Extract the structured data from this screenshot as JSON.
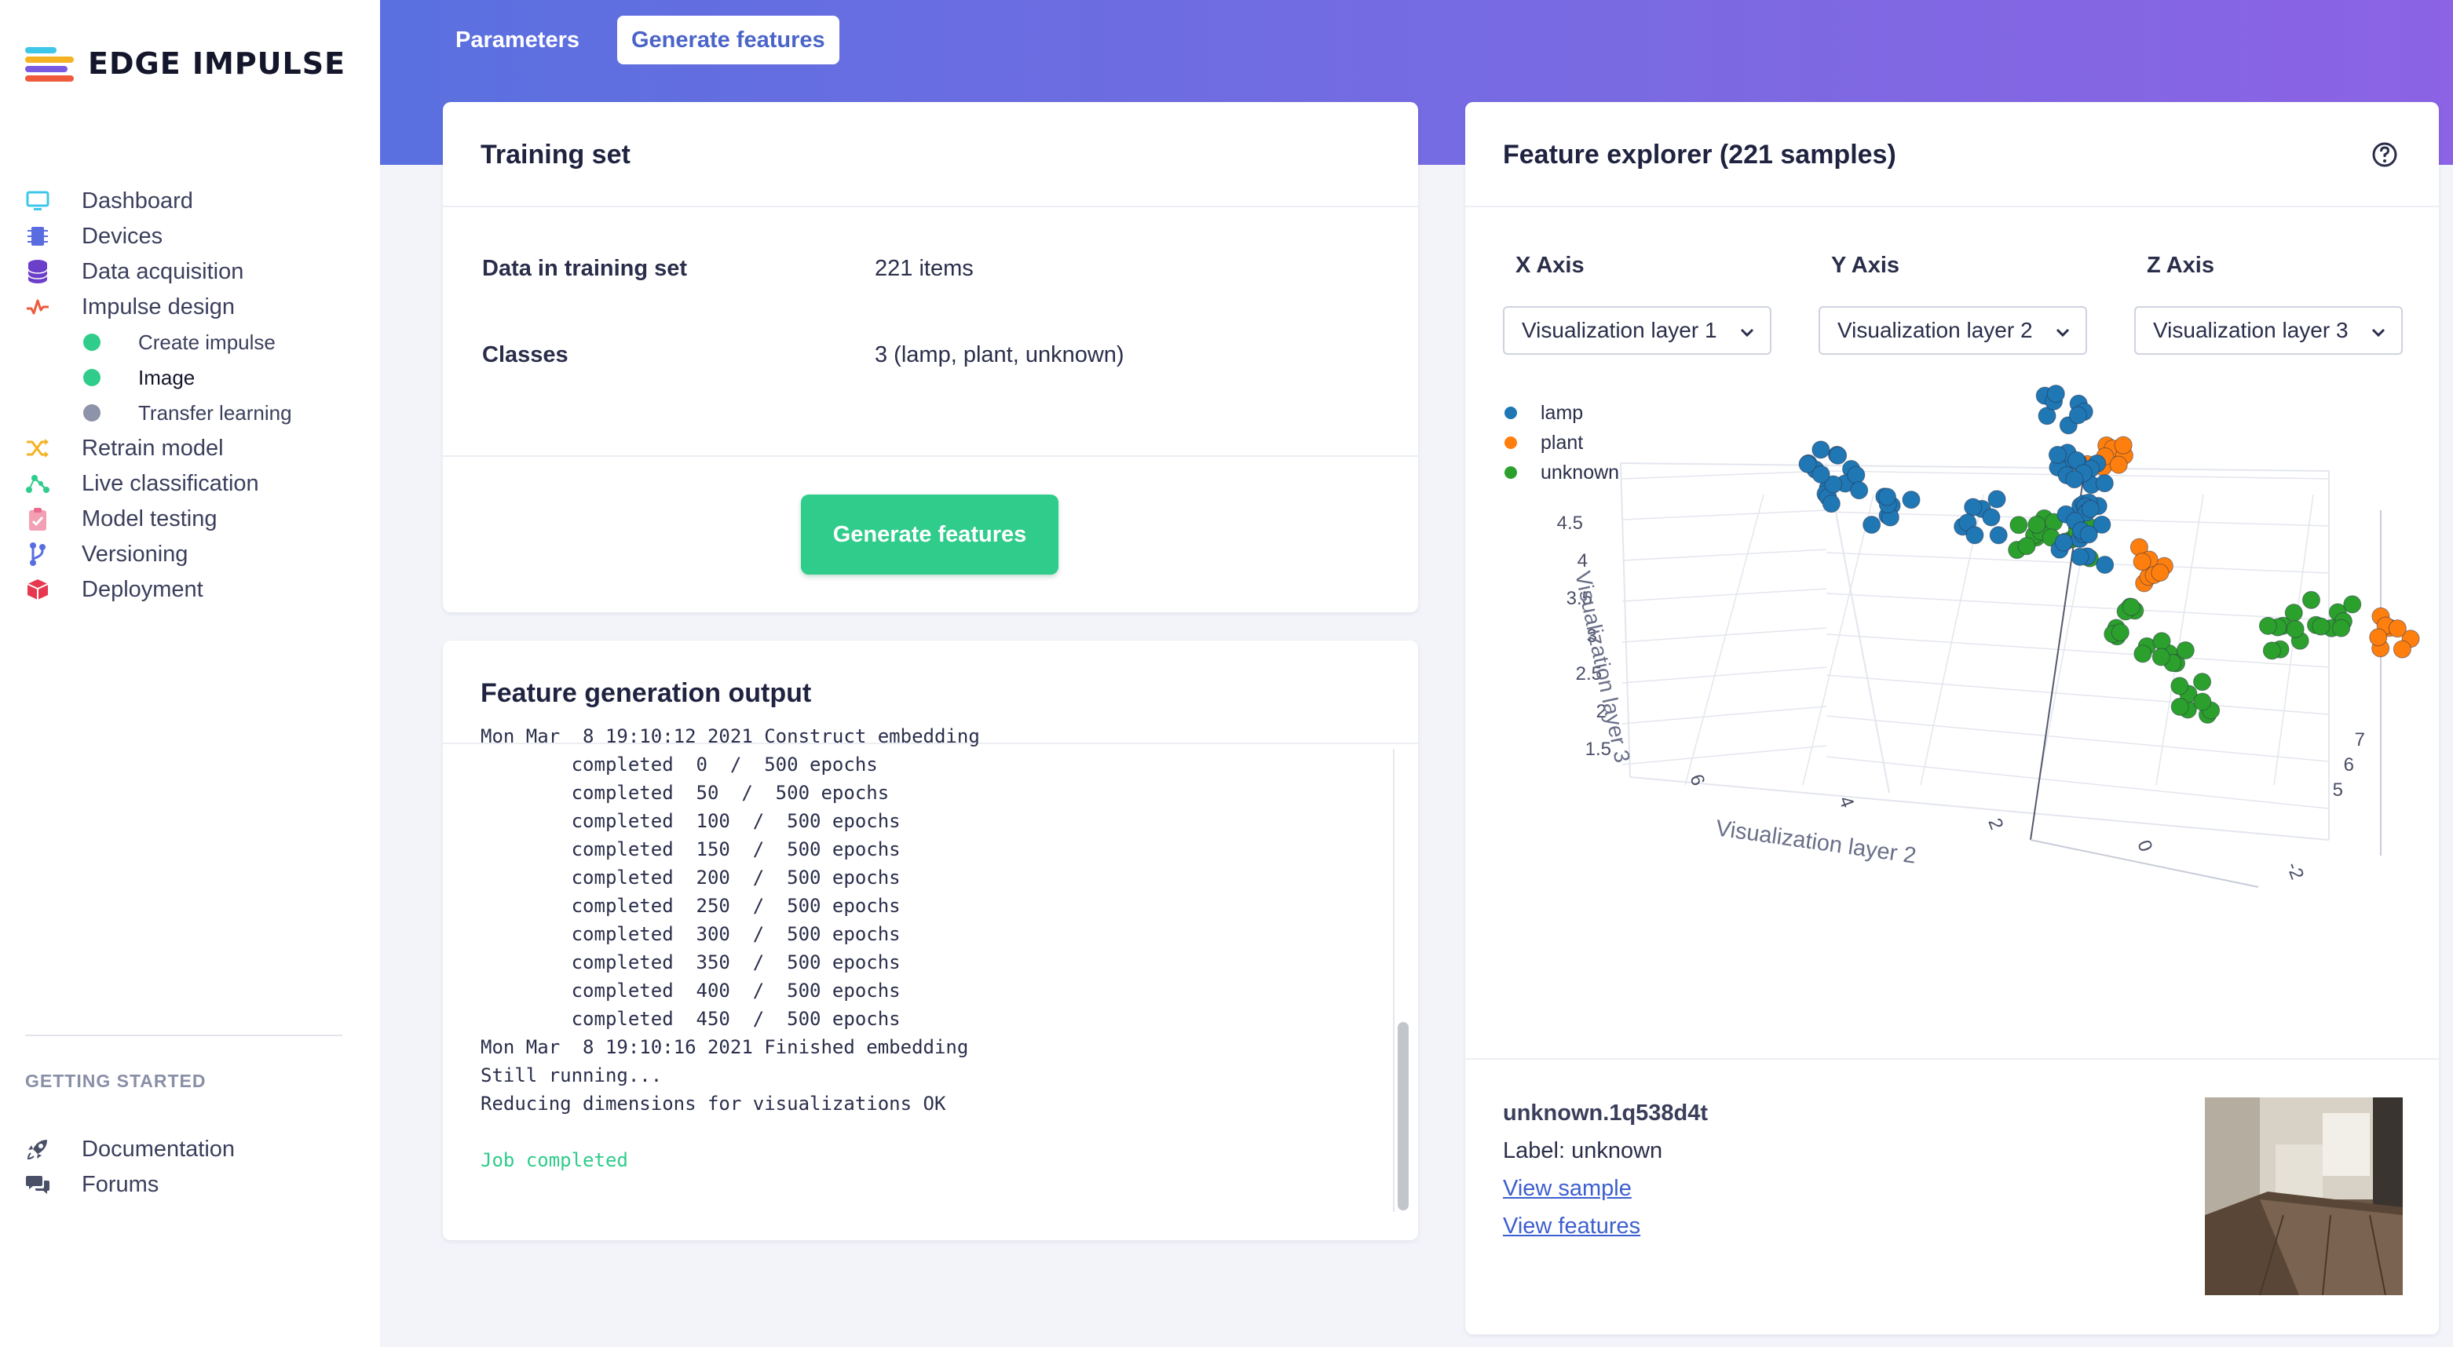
{
  "brand": {
    "name": "EDGE IMPULSE"
  },
  "sidebar": {
    "items": [
      {
        "label": "Dashboard",
        "icon": "monitor-icon"
      },
      {
        "label": "Devices",
        "icon": "chip-icon"
      },
      {
        "label": "Data acquisition",
        "icon": "database-icon"
      },
      {
        "label": "Impulse design",
        "icon": "pulse-icon"
      },
      {
        "label": "Create impulse",
        "status": "complete"
      },
      {
        "label": "Image",
        "status": "complete"
      },
      {
        "label": "Transfer learning",
        "status": "pending"
      },
      {
        "label": "Retrain model",
        "icon": "shuffle-icon"
      },
      {
        "label": "Live classification",
        "icon": "network-icon"
      },
      {
        "label": "Model testing",
        "icon": "clipboard-icon"
      },
      {
        "label": "Versioning",
        "icon": "branch-icon"
      },
      {
        "label": "Deployment",
        "icon": "box-icon"
      }
    ],
    "section_label": "GETTING STARTED",
    "getting_started": [
      {
        "label": "Documentation",
        "icon": "rocket-icon"
      },
      {
        "label": "Forums",
        "icon": "chat-icon"
      }
    ]
  },
  "tabs": [
    {
      "label": "Parameters",
      "active": false
    },
    {
      "label": "Generate features",
      "active": true
    }
  ],
  "training_set": {
    "title": "Training set",
    "rows": [
      {
        "label": "Data in training set",
        "value": "221 items"
      },
      {
        "label": "Classes",
        "value": "3 (lamp, plant, unknown)"
      }
    ],
    "button_label": "Generate features"
  },
  "output": {
    "title": "Feature generation output",
    "lines": [
      "Mon Mar  8 19:10:12 2021 Construct embedding",
      "        completed  0  /  500 epochs",
      "        completed  50  /  500 epochs",
      "        completed  100  /  500 epochs",
      "        completed  150  /  500 epochs",
      "        completed  200  /  500 epochs",
      "        completed  250  /  500 epochs",
      "        completed  300  /  500 epochs",
      "        completed  350  /  500 epochs",
      "        completed  400  /  500 epochs",
      "        completed  450  /  500 epochs",
      "Mon Mar  8 19:10:16 2021 Finished embedding",
      "Still running...",
      "Reducing dimensions for visualizations OK",
      "",
      "Job completed"
    ]
  },
  "explorer": {
    "title": "Feature explorer (221 samples)",
    "axes": [
      {
        "label": "X Axis",
        "selected": "Visualization layer 1"
      },
      {
        "label": "Y Axis",
        "selected": "Visualization layer 2"
      },
      {
        "label": "Z Axis",
        "selected": "Visualization layer 3"
      }
    ],
    "sample": {
      "name": "unknown.1q538d4t",
      "label": "Label: unknown",
      "view_sample": "View sample",
      "view_features": "View features"
    }
  },
  "colors": {
    "lamp": "#1f77b4",
    "plant": "#ff7f0e",
    "unknown": "#2ca02c",
    "accent": "#2fcc8b"
  },
  "chart_data": {
    "type": "scatter",
    "dimensions": 3,
    "legend": [
      "lamp",
      "plant",
      "unknown"
    ],
    "zlabel": "Visualization layer 3",
    "ylabel": "Visualization layer 2",
    "z_ticks": [
      "1.5",
      "2",
      "2.5",
      "3",
      "3.5",
      "4",
      "4.5"
    ],
    "y_ticks": [
      "6",
      "4",
      "2",
      "0",
      "-2"
    ],
    "x_ticks": [
      "7",
      "6",
      "5"
    ],
    "series": [
      {
        "name": "lamp",
        "points": [
          [
            6.2,
            5.6,
            4.3
          ],
          [
            6.0,
            5.4,
            4.1
          ],
          [
            5.8,
            4.8,
            3.8
          ],
          [
            5.5,
            3.8,
            3.7
          ],
          [
            4.9,
            2.7,
            4.6
          ],
          [
            4.7,
            2.5,
            4.1
          ],
          [
            4.5,
            2.3,
            3.8
          ],
          [
            4.3,
            2.2,
            3.5
          ],
          [
            4.0,
            2.1,
            3.2
          ]
        ]
      },
      {
        "name": "plant",
        "points": [
          [
            7.3,
            -1.8,
            4.9
          ],
          [
            7.0,
            -1.2,
            3.3
          ],
          [
            6.4,
            0.1,
            2.5
          ],
          [
            4.9,
            2.3,
            4.2
          ],
          [
            4.6,
            1.8,
            3.1
          ]
        ]
      },
      {
        "name": "unknown",
        "points": [
          [
            5.4,
            3.2,
            3.5
          ],
          [
            5.0,
            2.7,
            3.4
          ],
          [
            4.4,
            1.8,
            2.6
          ],
          [
            4.2,
            1.4,
            2.2
          ],
          [
            3.9,
            1.0,
            1.8
          ],
          [
            5.6,
            0.8,
            2.5
          ],
          [
            5.2,
            0.2,
            2.6
          ]
        ]
      }
    ]
  }
}
